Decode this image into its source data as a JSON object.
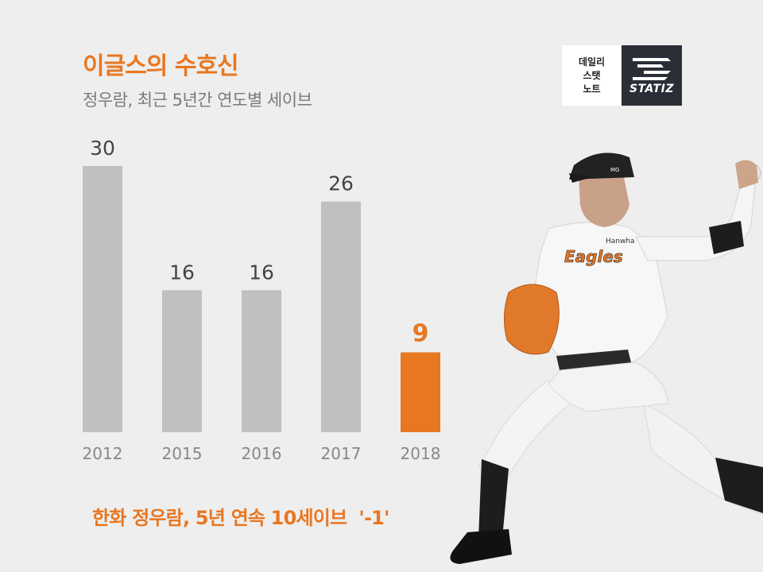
{
  "header": {
    "title": "이글스의 수호신",
    "subtitle": "정우람, 최근 5년간 연도별 세이브"
  },
  "logo": {
    "korean_lines": [
      "데일리",
      "스탯",
      "노트"
    ],
    "brand": "STATIZ"
  },
  "footnote": "한화 정우람, 5년 연속 10세이브  '-1'",
  "colors": {
    "accent": "#e87722",
    "bar_default": "#c0c0c0",
    "background": "#eeeeee"
  },
  "chart_data": {
    "type": "bar",
    "title": "이글스의 수호신",
    "subtitle": "정우람, 최근 5년간 연도별 세이브",
    "categories": [
      "2012",
      "2015",
      "2016",
      "2017",
      "2018"
    ],
    "values": [
      30,
      16,
      16,
      26,
      9
    ],
    "highlight": "2018",
    "ylim": [
      0,
      35
    ],
    "grid": false,
    "xlabel": "",
    "ylabel": ""
  },
  "player_image": {
    "cap_text": "MG",
    "jersey_brand": "Hanwha",
    "jersey_team": "Eagles"
  }
}
